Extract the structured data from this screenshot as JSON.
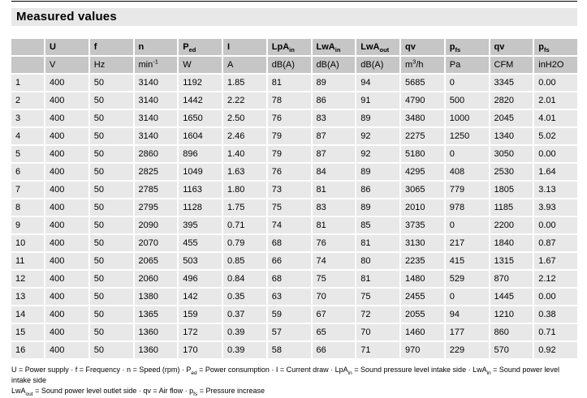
{
  "title": "Measured values",
  "table": {
    "columns": [
      {
        "label": [],
        "unit": []
      },
      {
        "label": [
          {
            "t": "U"
          }
        ],
        "unit": [
          {
            "t": "V"
          }
        ]
      },
      {
        "label": [
          {
            "t": "f"
          }
        ],
        "unit": [
          {
            "t": "Hz"
          }
        ]
      },
      {
        "label": [
          {
            "t": "n"
          }
        ],
        "unit": [
          {
            "t": "min"
          },
          {
            "t": "-1",
            "style": "sup"
          }
        ]
      },
      {
        "label": [
          {
            "t": "P"
          },
          {
            "t": "ed",
            "style": "sub"
          }
        ],
        "unit": [
          {
            "t": "W"
          }
        ]
      },
      {
        "label": [
          {
            "t": "I"
          }
        ],
        "unit": [
          {
            "t": "A"
          }
        ]
      },
      {
        "label": [
          {
            "t": "LpA"
          },
          {
            "t": "in",
            "style": "sub"
          }
        ],
        "unit": [
          {
            "t": "dB(A)"
          }
        ]
      },
      {
        "label": [
          {
            "t": "LwA"
          },
          {
            "t": "in",
            "style": "sub"
          }
        ],
        "unit": [
          {
            "t": "dB(A)"
          }
        ]
      },
      {
        "label": [
          {
            "t": "LwA"
          },
          {
            "t": "out",
            "style": "sub"
          }
        ],
        "unit": [
          {
            "t": "dB(A)"
          }
        ]
      },
      {
        "label": [
          {
            "t": "qv"
          }
        ],
        "unit": [
          {
            "t": "m"
          },
          {
            "t": "3",
            "style": "sup"
          },
          {
            "t": "/h"
          }
        ]
      },
      {
        "label": [
          {
            "t": "p"
          },
          {
            "t": "fs",
            "style": "sub"
          }
        ],
        "unit": [
          {
            "t": "Pa"
          }
        ]
      },
      {
        "label": [
          {
            "t": "qv"
          }
        ],
        "unit": [
          {
            "t": "CFM"
          }
        ]
      },
      {
        "label": [
          {
            "t": "p"
          },
          {
            "t": "fs",
            "style": "sub"
          }
        ],
        "unit": [
          {
            "t": "inH2O"
          }
        ]
      }
    ],
    "rows": [
      [
        "1",
        "400",
        "50",
        "3140",
        "1192",
        "1.85",
        "81",
        "89",
        "94",
        "5685",
        "0",
        "3345",
        "0.00"
      ],
      [
        "2",
        "400",
        "50",
        "3140",
        "1442",
        "2.22",
        "78",
        "86",
        "91",
        "4790",
        "500",
        "2820",
        "2.01"
      ],
      [
        "3",
        "400",
        "50",
        "3140",
        "1650",
        "2.50",
        "76",
        "83",
        "89",
        "3480",
        "1000",
        "2045",
        "4.01"
      ],
      [
        "4",
        "400",
        "50",
        "3140",
        "1604",
        "2.46",
        "79",
        "87",
        "92",
        "2275",
        "1250",
        "1340",
        "5.02"
      ],
      [
        "5",
        "400",
        "50",
        "2860",
        "896",
        "1.40",
        "79",
        "87",
        "92",
        "5180",
        "0",
        "3050",
        "0.00"
      ],
      [
        "6",
        "400",
        "50",
        "2825",
        "1049",
        "1.63",
        "76",
        "84",
        "89",
        "4295",
        "408",
        "2530",
        "1.64"
      ],
      [
        "7",
        "400",
        "50",
        "2785",
        "1163",
        "1.80",
        "73",
        "81",
        "86",
        "3065",
        "779",
        "1805",
        "3.13"
      ],
      [
        "8",
        "400",
        "50",
        "2795",
        "1128",
        "1.75",
        "75",
        "83",
        "89",
        "2010",
        "978",
        "1185",
        "3.93"
      ],
      [
        "9",
        "400",
        "50",
        "2090",
        "395",
        "0.71",
        "74",
        "81",
        "85",
        "3735",
        "0",
        "2200",
        "0.00"
      ],
      [
        "10",
        "400",
        "50",
        "2070",
        "455",
        "0.79",
        "68",
        "76",
        "81",
        "3130",
        "217",
        "1840",
        "0.87"
      ],
      [
        "11",
        "400",
        "50",
        "2065",
        "503",
        "0.85",
        "66",
        "74",
        "80",
        "2235",
        "415",
        "1315",
        "1.67"
      ],
      [
        "12",
        "400",
        "50",
        "2060",
        "496",
        "0.84",
        "68",
        "75",
        "81",
        "1480",
        "529",
        "870",
        "2.12"
      ],
      [
        "13",
        "400",
        "50",
        "1380",
        "142",
        "0.35",
        "63",
        "70",
        "75",
        "2455",
        "0",
        "1445",
        "0.00"
      ],
      [
        "14",
        "400",
        "50",
        "1365",
        "159",
        "0.37",
        "59",
        "67",
        "72",
        "2055",
        "94",
        "1210",
        "0.38"
      ],
      [
        "15",
        "400",
        "50",
        "1360",
        "172",
        "0.39",
        "57",
        "65",
        "70",
        "1460",
        "177",
        "860",
        "0.71"
      ],
      [
        "16",
        "400",
        "50",
        "1360",
        "170",
        "0.39",
        "58",
        "66",
        "71",
        "970",
        "229",
        "570",
        "0.92"
      ]
    ]
  },
  "footnote": {
    "lines": [
      [
        {
          "t": "U = Power supply · f = Frequency · n = Speed (rpm) · P"
        },
        {
          "t": "ed",
          "style": "sub"
        },
        {
          "t": " = Power consumption · I = Current draw · LpA"
        },
        {
          "t": "in",
          "style": "sub"
        },
        {
          "t": " = Sound pressure level intake side · LwA"
        },
        {
          "t": "in",
          "style": "sub"
        },
        {
          "t": " = Sound power level intake side"
        }
      ],
      [
        {
          "t": "LwA"
        },
        {
          "t": "out",
          "style": "sub"
        },
        {
          "t": " = Sound power level outlet side · qv = Air flow · p"
        },
        {
          "t": "fs",
          "style": "sub"
        },
        {
          "t": " = Pressure increase"
        }
      ]
    ]
  },
  "colors": {
    "header_bg": "#c6c6c6",
    "row_bg": "#e8e8e8",
    "title_bg": "#e8e8e8",
    "rule": "#000000",
    "text": "#000000"
  }
}
